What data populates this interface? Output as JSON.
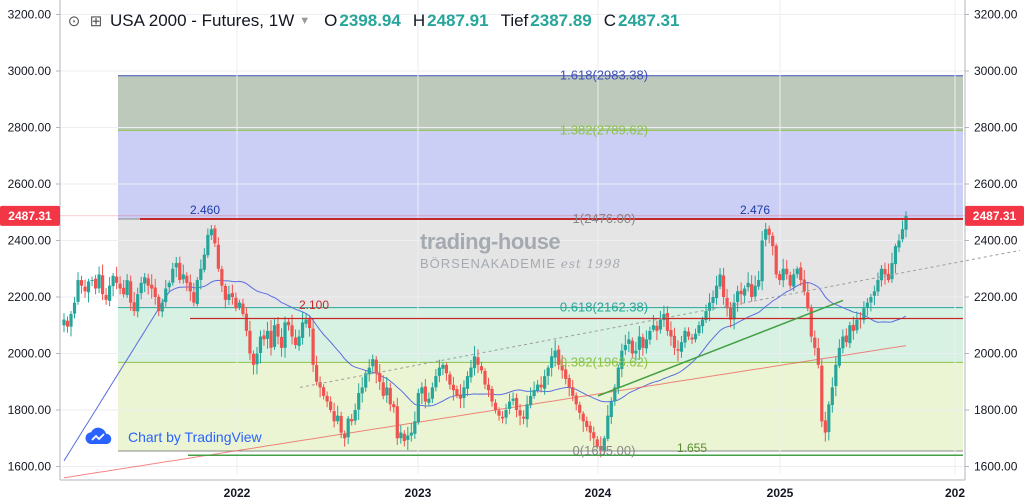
{
  "header": {
    "symbol_title": "USA 2000 - Futures, 1W",
    "open_label": "O",
    "open_value": "2398.94",
    "high_label": "H",
    "high_value": "2487.91",
    "low_label": "Tief",
    "low_value": "2387.89",
    "close_label": "C",
    "close_value": "2487.31",
    "icons": [
      "hide-icon",
      "add-compare-icon",
      "chevron-down-icon"
    ]
  },
  "branding": {
    "tradingview": "Chart by TradingView",
    "watermark_top": "trading-house",
    "watermark_bottom": "BÖRSENAKADEMIE",
    "watermark_est": "est 1998"
  },
  "colors": {
    "up": "#26a69a",
    "down": "#ef5350",
    "price_tag": "#f23645",
    "ma_blue": "#5b6ee1",
    "ma_red": "#ef5350",
    "trend_green": "#43a047"
  },
  "chart_data": {
    "type": "candlestick",
    "x_axis_labels": [
      "2022",
      "2023",
      "2024",
      "2025",
      "202"
    ],
    "y_ticks": [
      1600,
      1800,
      2000,
      2200,
      2400,
      2600,
      2800,
      3000,
      3200
    ],
    "y_tick_labels": [
      "1600.00",
      "1800.00",
      "2000.00",
      "2200.00",
      "2400.00",
      "2600.00",
      "2800.00",
      "3000.00",
      "3200.00"
    ],
    "ylim": [
      1575,
      3240
    ],
    "last_price": "2487.31",
    "fib_levels": [
      {
        "label": "1.618(2983.38)",
        "value": 2983.38,
        "color": "#3f51b5"
      },
      {
        "label": "1.382(2789.62)",
        "value": 2789.62,
        "color": "#8bc34a"
      },
      {
        "label": "1(2476.00)",
        "value": 2476.0,
        "color": "#888888"
      },
      {
        "label": "0.618(2162.38)",
        "value": 2162.38,
        "color": "#26a69a"
      },
      {
        "label": "0.382(1968.62)",
        "value": 1968.62,
        "color": "#8bc34a"
      },
      {
        "label": "0(1655.00)",
        "value": 1655.0,
        "color": "#888888"
      }
    ],
    "annotations": [
      {
        "text": "2.460",
        "price": 2460,
        "color": "#1e3aa8"
      },
      {
        "text": "2.476",
        "price": 2476,
        "color": "#1e3aa8"
      },
      {
        "text": "2.100",
        "price": 2124,
        "color": "#c62828"
      },
      {
        "text": "1.655",
        "price": 1640,
        "color": "#558b2f"
      }
    ],
    "weekly_closes": [
      2120,
      2095,
      2140,
      2180,
      2260,
      2240,
      2220,
      2255,
      2260,
      2230,
      2280,
      2210,
      2190,
      2240,
      2275,
      2250,
      2230,
      2210,
      2260,
      2180,
      2150,
      2210,
      2250,
      2270,
      2240,
      2230,
      2200,
      2150,
      2180,
      2230,
      2250,
      2300,
      2320,
      2260,
      2280,
      2250,
      2220,
      2180,
      2260,
      2300,
      2350,
      2420,
      2440,
      2390,
      2300,
      2240,
      2190,
      2210,
      2200,
      2160,
      2180,
      2140,
      2080,
      2000,
      1960,
      2000,
      2060,
      2050,
      2080,
      2020,
      2100,
      2060,
      2020,
      2110,
      2100,
      2060,
      2030,
      2060,
      2110,
      2120,
      2090,
      1960,
      1900,
      1880,
      1850,
      1830,
      1800,
      1760,
      1780,
      1720,
      1700,
      1770,
      1760,
      1800,
      1860,
      1880,
      1930,
      1950,
      1980,
      1930,
      1900,
      1850,
      1880,
      1820,
      1810,
      1700,
      1720,
      1690,
      1710,
      1720,
      1760,
      1860,
      1880,
      1830,
      1840,
      1880,
      1920,
      1950,
      1960,
      1930,
      1890,
      1870,
      1850,
      1840,
      1880,
      1920,
      1950,
      1990,
      1960,
      1940,
      1890,
      1870,
      1830,
      1800,
      1780,
      1770,
      1800,
      1830,
      1840,
      1800,
      1780,
      1770,
      1820,
      1850,
      1870,
      1890,
      1880,
      1920,
      1950,
      1990,
      2010,
      1960,
      1940,
      1910,
      1880,
      1850,
      1820,
      1790,
      1760,
      1740,
      1720,
      1700,
      1670,
      1660,
      1700,
      1780,
      1830,
      1880,
      1950,
      2010,
      2030,
      2050,
      2000,
      2010,
      2060,
      2020,
      2050,
      2080,
      2100,
      2080,
      2120,
      2140,
      2080,
      2060,
      2020,
      2010,
      2040,
      2080,
      2060,
      2050,
      2070,
      2100,
      2120,
      2150,
      2180,
      2200,
      2240,
      2280,
      2200,
      2160,
      2120,
      2180,
      2220,
      2210,
      2230,
      2250,
      2200,
      2240,
      2260,
      2400,
      2440,
      2420,
      2380,
      2280,
      2260,
      2300,
      2280,
      2240,
      2280,
      2300,
      2260,
      2220,
      2160,
      2060,
      2020,
      1960,
      1760,
      1720,
      1820,
      1880,
      1960,
      2020,
      2060,
      2040,
      2100,
      2080,
      2120,
      2120,
      2160,
      2180,
      2200,
      2220,
      2260,
      2300,
      2280,
      2260,
      2320,
      2380,
      2400,
      2440,
      2487
    ]
  }
}
